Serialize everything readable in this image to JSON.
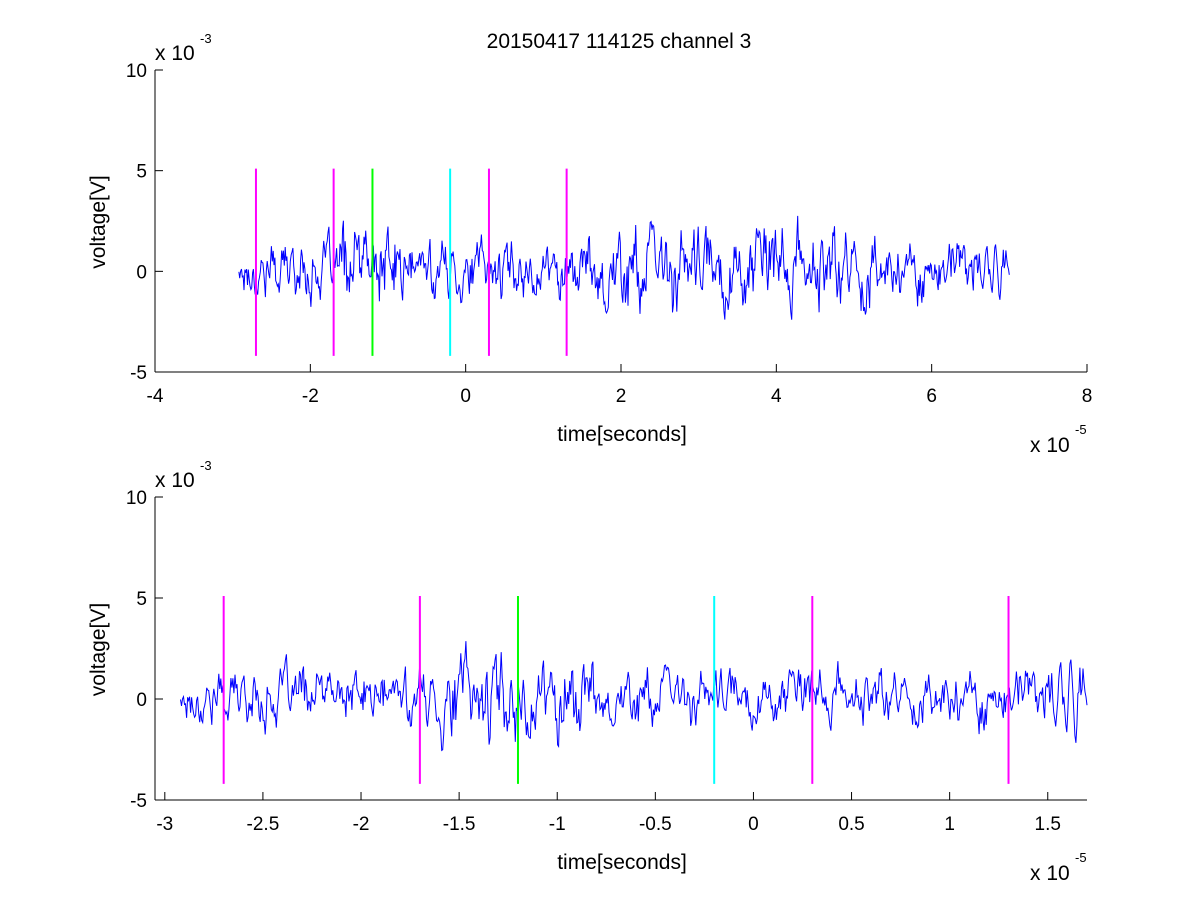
{
  "figure": {
    "title": "20150417 114125 channel 3"
  },
  "chart_data": [
    {
      "type": "line",
      "xlabel": "time[seconds]",
      "ylabel": "voltage[V]",
      "x_multiplier": {
        "base": "x 10",
        "exponent": "-5"
      },
      "y_multiplier": {
        "base": "x 10",
        "exponent": "-3"
      },
      "xlim": [
        -4,
        8
      ],
      "ylim": [
        -5,
        10
      ],
      "x_ticks": [
        -4,
        -2,
        0,
        2,
        4,
        6,
        8
      ],
      "x_tick_labels": [
        "-4",
        "-2",
        "0",
        "2",
        "4",
        "6",
        "8"
      ],
      "y_ticks": [
        -5,
        0,
        5,
        10
      ],
      "y_tick_labels": [
        "-5",
        "0",
        "5",
        "10"
      ],
      "grid": false,
      "signal": {
        "x_range": [
          -2.92,
          7.0
        ],
        "samples": 900,
        "seed": 17,
        "color": "#0000ff"
      },
      "markers": [
        {
          "x": -2.7,
          "y_range": [
            -4.2,
            5.1
          ],
          "color": "#ff00ff"
        },
        {
          "x": -1.7,
          "y_range": [
            -4.2,
            5.1
          ],
          "color": "#ff00ff"
        },
        {
          "x": -1.2,
          "y_range": [
            -4.2,
            5.1
          ],
          "color": "#00ff00"
        },
        {
          "x": -0.2,
          "y_range": [
            -4.2,
            5.1
          ],
          "color": "#00ffff"
        },
        {
          "x": 0.3,
          "y_range": [
            -4.2,
            5.1
          ],
          "color": "#ff00ff"
        },
        {
          "x": 1.3,
          "y_range": [
            -4.2,
            5.1
          ],
          "color": "#ff00ff"
        }
      ]
    },
    {
      "type": "line",
      "xlabel": "time[seconds]",
      "ylabel": "voltage[V]",
      "x_multiplier": {
        "base": "x 10",
        "exponent": "-5"
      },
      "y_multiplier": {
        "base": "x 10",
        "exponent": "-3"
      },
      "xlim": [
        -3.05,
        1.7
      ],
      "ylim": [
        -5,
        10
      ],
      "x_ticks": [
        -3,
        -2.5,
        -2,
        -1.5,
        -1,
        -0.5,
        0,
        0.5,
        1,
        1.5
      ],
      "x_tick_labels": [
        "-3",
        "-2.5",
        "-2",
        "-1.5",
        "-1",
        "-0.5",
        "0",
        "0.5",
        "1",
        "1.5"
      ],
      "y_ticks": [
        -5,
        0,
        5,
        10
      ],
      "y_tick_labels": [
        "-5",
        "0",
        "5",
        "10"
      ],
      "grid": false,
      "signal": {
        "x_range": [
          -2.92,
          1.7
        ],
        "samples": 900,
        "seed": 17,
        "color": "#0000ff"
      },
      "markers": [
        {
          "x": -2.7,
          "y_range": [
            -4.2,
            5.1
          ],
          "color": "#ff00ff"
        },
        {
          "x": -1.7,
          "y_range": [
            -4.2,
            5.1
          ],
          "color": "#ff00ff"
        },
        {
          "x": -1.2,
          "y_range": [
            -4.2,
            5.1
          ],
          "color": "#00ff00"
        },
        {
          "x": -0.2,
          "y_range": [
            -4.2,
            5.1
          ],
          "color": "#00ffff"
        },
        {
          "x": 0.3,
          "y_range": [
            -4.2,
            5.1
          ],
          "color": "#ff00ff"
        },
        {
          "x": 1.3,
          "y_range": [
            -4.2,
            5.1
          ],
          "color": "#ff00ff"
        }
      ]
    }
  ]
}
